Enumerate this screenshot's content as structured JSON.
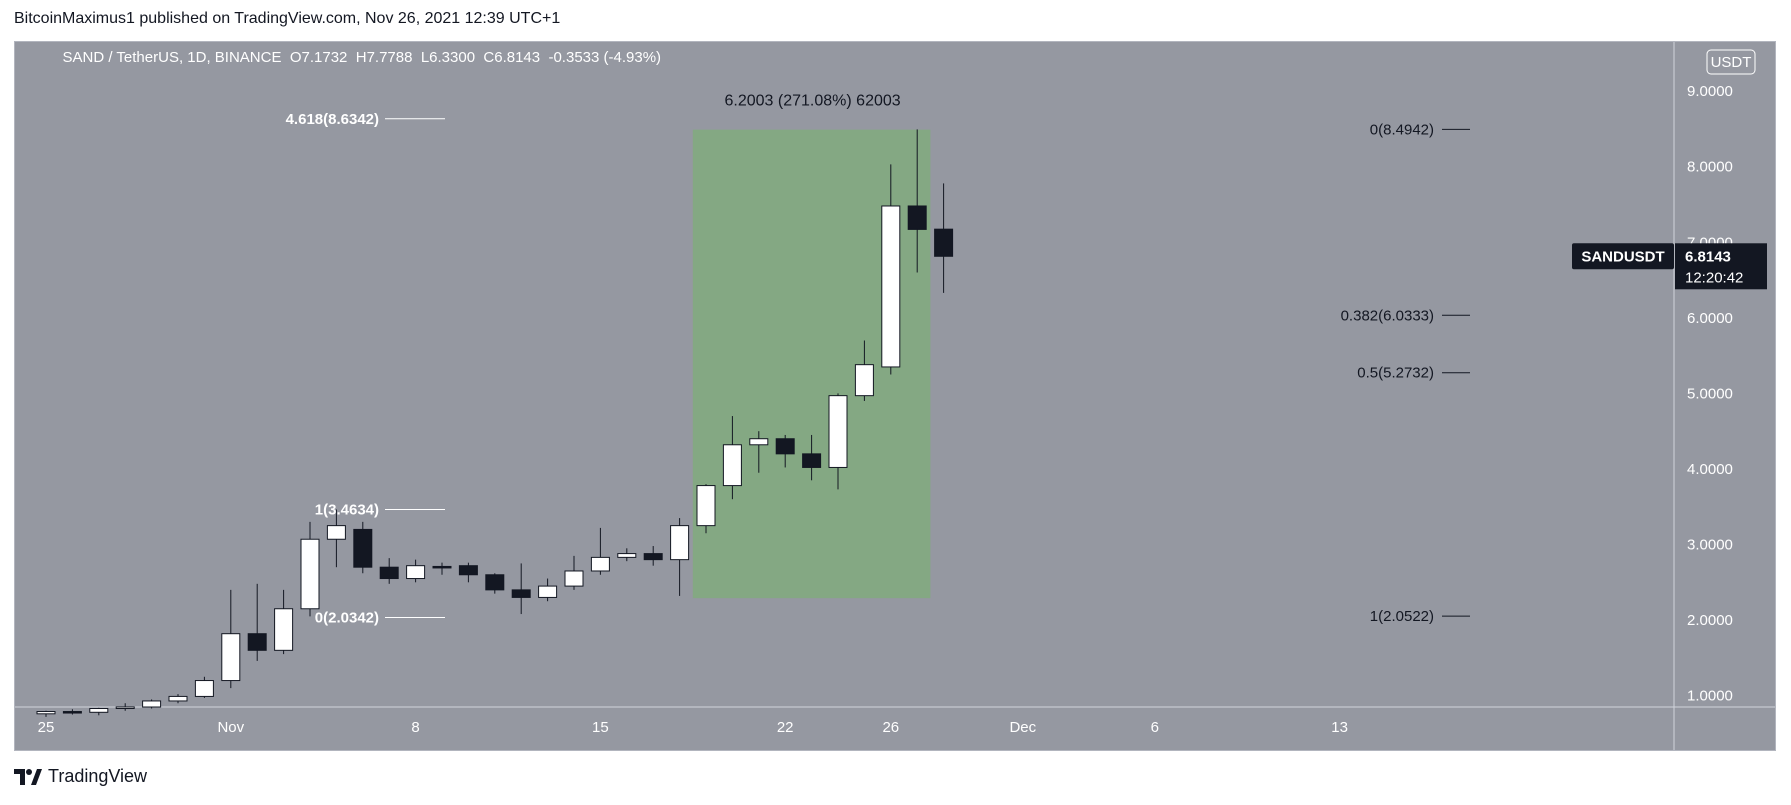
{
  "header": {
    "published_by": "BitcoinMaximus1 published on TradingView.com, Nov 26, 2021 12:39 UTC+1"
  },
  "footer": {
    "brand": "TradingView"
  },
  "colors": {
    "background": "#9598a1",
    "green_zone": "#84a883",
    "candle_up": "#ffffff",
    "candle_down": "#131722",
    "text": "#131722",
    "text_light": "#ffffff"
  },
  "chart_data": {
    "type": "candlestick",
    "symbol_line": {
      "symbol": "SAND / TetherUS, 1D, BINANCE",
      "open_label": "O",
      "open": "7.1732",
      "high_label": "H",
      "high": "7.7788",
      "low_label": "L",
      "low": "6.3300",
      "close_label": "C",
      "close": "6.8143",
      "change": "-0.3533 (-4.93%)"
    },
    "currency_badge": "USDT",
    "price_axis": {
      "min": 0.85,
      "max": 9.65,
      "ticks": [
        "1.0000",
        "2.0000",
        "3.0000",
        "4.0000",
        "5.0000",
        "6.0000",
        "7.0000",
        "8.0000",
        "9.0000"
      ]
    },
    "time_axis": {
      "start_date": "2021-10-25",
      "labels": [
        {
          "date": "2021-10-25",
          "label": "25"
        },
        {
          "date": "2021-11-01",
          "label": "Nov"
        },
        {
          "date": "2021-11-08",
          "label": "8"
        },
        {
          "date": "2021-11-15",
          "label": "15"
        },
        {
          "date": "2021-11-22",
          "label": "22"
        },
        {
          "date": "2021-11-26",
          "label": "26"
        },
        {
          "date": "2021-12-01",
          "label": "Dec"
        },
        {
          "date": "2021-12-06",
          "label": "6"
        },
        {
          "date": "2021-12-13",
          "label": "13"
        }
      ]
    },
    "candles": [
      {
        "date": "2021-10-25",
        "o": 0.76,
        "h": 0.8,
        "l": 0.72,
        "c": 0.79
      },
      {
        "date": "2021-10-26",
        "o": 0.79,
        "h": 0.82,
        "l": 0.75,
        "c": 0.78
      },
      {
        "date": "2021-10-27",
        "o": 0.78,
        "h": 0.84,
        "l": 0.74,
        "c": 0.83
      },
      {
        "date": "2021-10-28",
        "o": 0.83,
        "h": 0.9,
        "l": 0.8,
        "c": 0.85
      },
      {
        "date": "2021-10-29",
        "o": 0.85,
        "h": 0.95,
        "l": 0.83,
        "c": 0.93
      },
      {
        "date": "2021-10-30",
        "o": 0.93,
        "h": 1.02,
        "l": 0.9,
        "c": 0.99
      },
      {
        "date": "2021-10-31",
        "o": 0.99,
        "h": 1.25,
        "l": 0.97,
        "c": 1.2
      },
      {
        "date": "2021-11-01",
        "o": 1.2,
        "h": 2.4,
        "l": 1.1,
        "c": 1.82
      },
      {
        "date": "2021-11-02",
        "o": 1.82,
        "h": 2.48,
        "l": 1.46,
        "c": 1.6
      },
      {
        "date": "2021-11-03",
        "o": 1.6,
        "h": 2.4,
        "l": 1.55,
        "c": 2.15
      },
      {
        "date": "2021-11-04",
        "o": 2.15,
        "h": 3.3,
        "l": 2.05,
        "c": 3.07
      },
      {
        "date": "2021-11-05",
        "o": 3.07,
        "h": 3.4634,
        "l": 2.7,
        "c": 3.25
      },
      {
        "date": "2021-11-06",
        "o": 3.2,
        "h": 3.3,
        "l": 2.62,
        "c": 2.7
      },
      {
        "date": "2021-11-07",
        "o": 2.7,
        "h": 2.82,
        "l": 2.48,
        "c": 2.55
      },
      {
        "date": "2021-11-08",
        "o": 2.55,
        "h": 2.8,
        "l": 2.5,
        "c": 2.72
      },
      {
        "date": "2021-11-09",
        "o": 2.71,
        "h": 2.76,
        "l": 2.6,
        "c": 2.7
      },
      {
        "date": "2021-11-10",
        "o": 2.72,
        "h": 2.76,
        "l": 2.5,
        "c": 2.6
      },
      {
        "date": "2021-11-11",
        "o": 2.6,
        "h": 2.62,
        "l": 2.35,
        "c": 2.4
      },
      {
        "date": "2021-11-12",
        "o": 2.4,
        "h": 2.75,
        "l": 2.08,
        "c": 2.3
      },
      {
        "date": "2021-11-13",
        "o": 2.3,
        "h": 2.55,
        "l": 2.25,
        "c": 2.45
      },
      {
        "date": "2021-11-14",
        "o": 2.45,
        "h": 2.85,
        "l": 2.4,
        "c": 2.65
      },
      {
        "date": "2021-11-15",
        "o": 2.65,
        "h": 3.22,
        "l": 2.6,
        "c": 2.83
      },
      {
        "date": "2021-11-16",
        "o": 2.83,
        "h": 2.95,
        "l": 2.78,
        "c": 2.88
      },
      {
        "date": "2021-11-17",
        "o": 2.88,
        "h": 2.98,
        "l": 2.72,
        "c": 2.8
      },
      {
        "date": "2021-11-18",
        "o": 2.8,
        "h": 3.35,
        "l": 2.32,
        "c": 3.25
      },
      {
        "date": "2021-11-19",
        "o": 3.25,
        "h": 3.8,
        "l": 3.15,
        "c": 3.78
      },
      {
        "date": "2021-11-20",
        "o": 3.78,
        "h": 4.7,
        "l": 3.6,
        "c": 4.32
      },
      {
        "date": "2021-11-21",
        "o": 4.32,
        "h": 4.5,
        "l": 3.95,
        "c": 4.4
      },
      {
        "date": "2021-11-22",
        "o": 4.4,
        "h": 4.45,
        "l": 4.02,
        "c": 4.2
      },
      {
        "date": "2021-11-23",
        "o": 4.2,
        "h": 4.45,
        "l": 3.85,
        "c": 4.02
      },
      {
        "date": "2021-11-24",
        "o": 4.02,
        "h": 5.0,
        "l": 3.73,
        "c": 4.97
      },
      {
        "date": "2021-11-25",
        "o": 4.97,
        "h": 5.7,
        "l": 4.9,
        "c": 5.38
      },
      {
        "date": "2021-11-26",
        "o": 5.35,
        "h": 8.03,
        "l": 5.25,
        "c": 7.48
      },
      {
        "date": "2021-11-27",
        "o": 7.48,
        "h": 8.4942,
        "l": 6.6,
        "c": 7.17
      },
      {
        "date": "2021-11-28",
        "o": 7.1732,
        "h": 7.7788,
        "l": 6.33,
        "c": 6.8143
      }
    ],
    "price_label": {
      "symbol": "SANDUSDT",
      "price": "6.8143",
      "countdown": "12:20:42",
      "value": 6.8143
    },
    "measure": {
      "label": "6.2003 (271.08%) 62003",
      "start_date": "2021-11-19",
      "end_date": "2021-11-27",
      "low": 2.29,
      "high": 8.49
    },
    "fib_left": [
      {
        "label": "4.618(8.6342)",
        "value": 8.6342
      },
      {
        "label": "1(3.4634)",
        "value": 3.4634
      },
      {
        "label": "0(2.0342)",
        "value": 2.0342
      }
    ],
    "fib_right": [
      {
        "label": "0(8.4942)",
        "value": 8.4942
      },
      {
        "label": "0.382(6.0333)",
        "value": 6.0333
      },
      {
        "label": "0.5(5.2732)",
        "value": 5.2732
      },
      {
        "label": "1(2.0522)",
        "value": 2.0522
      }
    ]
  }
}
